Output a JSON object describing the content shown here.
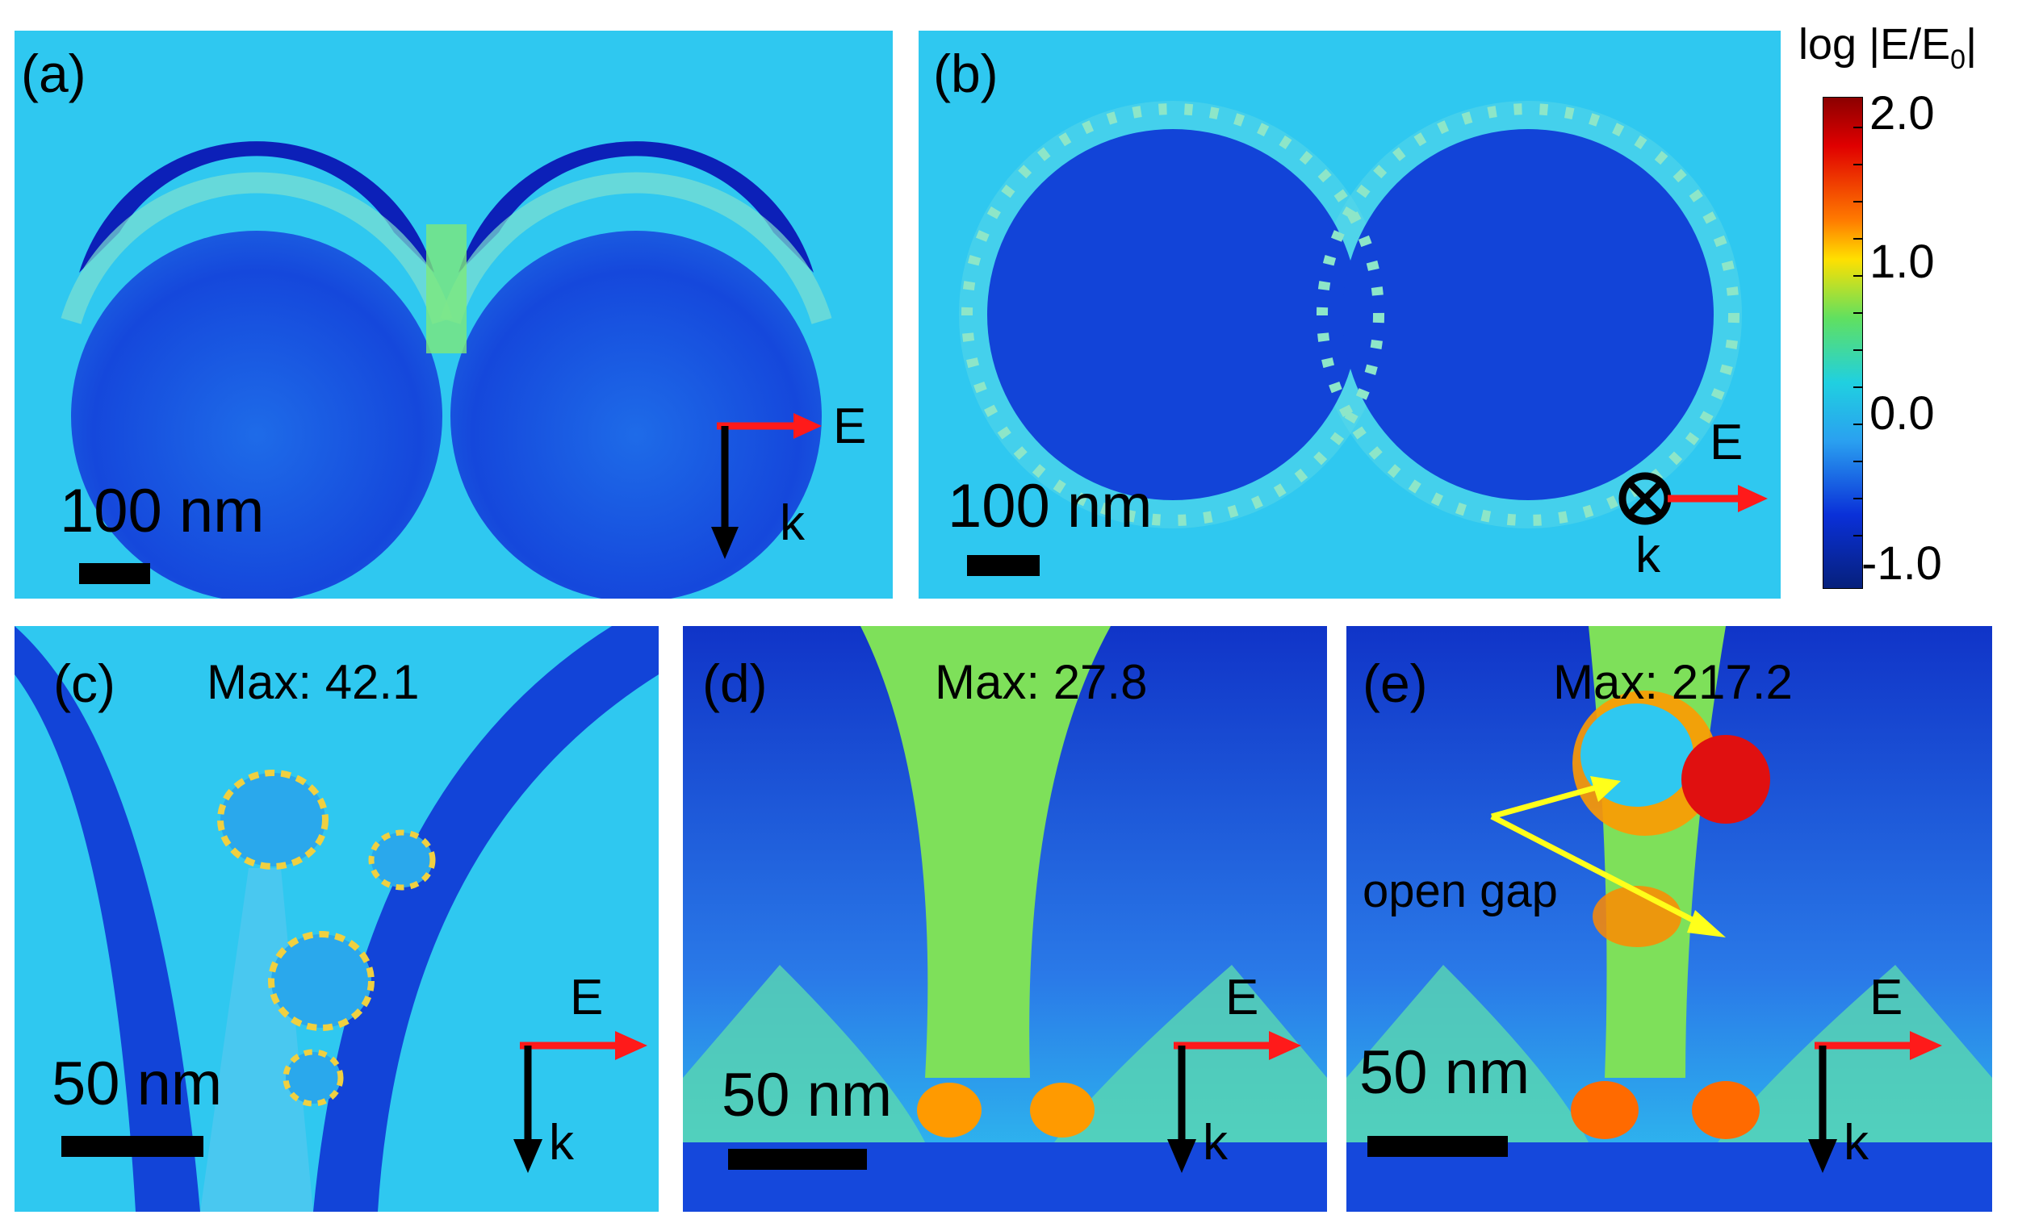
{
  "panels": {
    "a": {
      "label": "(a)",
      "scale_bar": "100 nm",
      "e_label": "E",
      "k_label": "k"
    },
    "b": {
      "label": "(b)",
      "scale_bar": "100 nm",
      "e_label": "E",
      "k_label": "k"
    },
    "c": {
      "label": "(c)",
      "max_text": "Max: 42.1",
      "scale_bar": "50 nm",
      "e_label": "E",
      "k_label": "k"
    },
    "d": {
      "label": "(d)",
      "max_text": "Max: 27.8",
      "scale_bar": "50 nm",
      "e_label": "E",
      "k_label": "k"
    },
    "e": {
      "label": "(e)",
      "max_text": "Max: 217.2",
      "scale_bar": "50 nm",
      "e_label": "E",
      "k_label": "k",
      "annotation": "open gap"
    }
  },
  "colorbar": {
    "title_prefix": "log |E/E",
    "title_sub": "0",
    "title_suffix": "|",
    "ticks": [
      "2.0",
      "1.0",
      "0.0",
      "-1.0"
    ]
  },
  "colors": {
    "field_background": "#2fc8f0",
    "dark_blue": "#0a2ad0",
    "arrow_e": "#ff1a1a",
    "arrow_k": "#000000",
    "annotation_arrow": "#ffff1a"
  }
}
